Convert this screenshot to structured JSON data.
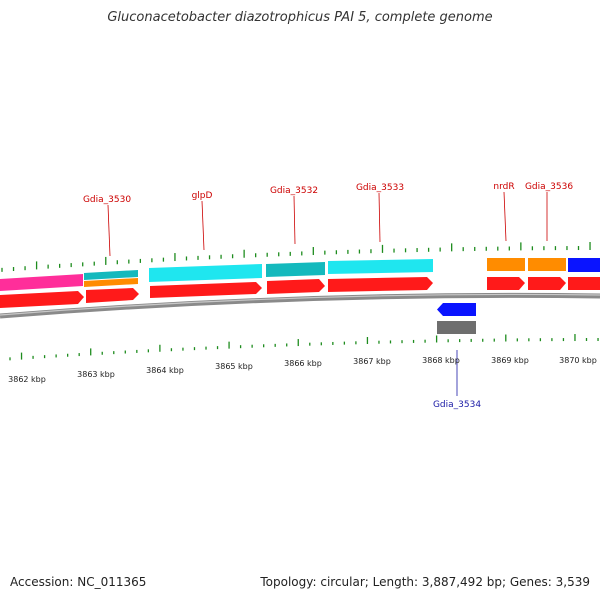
{
  "header": {
    "title": "Gluconacetobacter diazotrophicus PAI 5, complete genome"
  },
  "footer": {
    "accession": "Accession: NC_011365",
    "summary": "Topology: circular; Length: 3,887,492 bp; Genes: 3,539"
  },
  "colors": {
    "tick": "#1e8c1e",
    "backbone": "#888888",
    "gene_cds_forward": "#ff1a1a",
    "gene_cds_reverse": "#0a14ff",
    "gene_other": "#6e6e6e",
    "feature_cyan": "#1fe6ef",
    "feature_teal": "#14b9bd",
    "feature_orange": "#ff8c00",
    "feature_magenta": "#ff2e9a",
    "label_forward": "#cc0000",
    "label_reverse": "#1a1aa6"
  },
  "scale": {
    "labels": [
      "3862 kbp",
      "3863 kbp",
      "3864 kbp",
      "3865 kbp",
      "3866 kbp",
      "3867 kbp",
      "3868 kbp",
      "3869 kbp",
      "3870 kbp"
    ]
  },
  "gene_labels": {
    "forward": [
      "Gdia_3530",
      "glpD",
      "Gdia_3532",
      "Gdia_3533",
      "nrdR",
      "Gdia_3536"
    ],
    "reverse": [
      "Gdia_3534"
    ]
  }
}
